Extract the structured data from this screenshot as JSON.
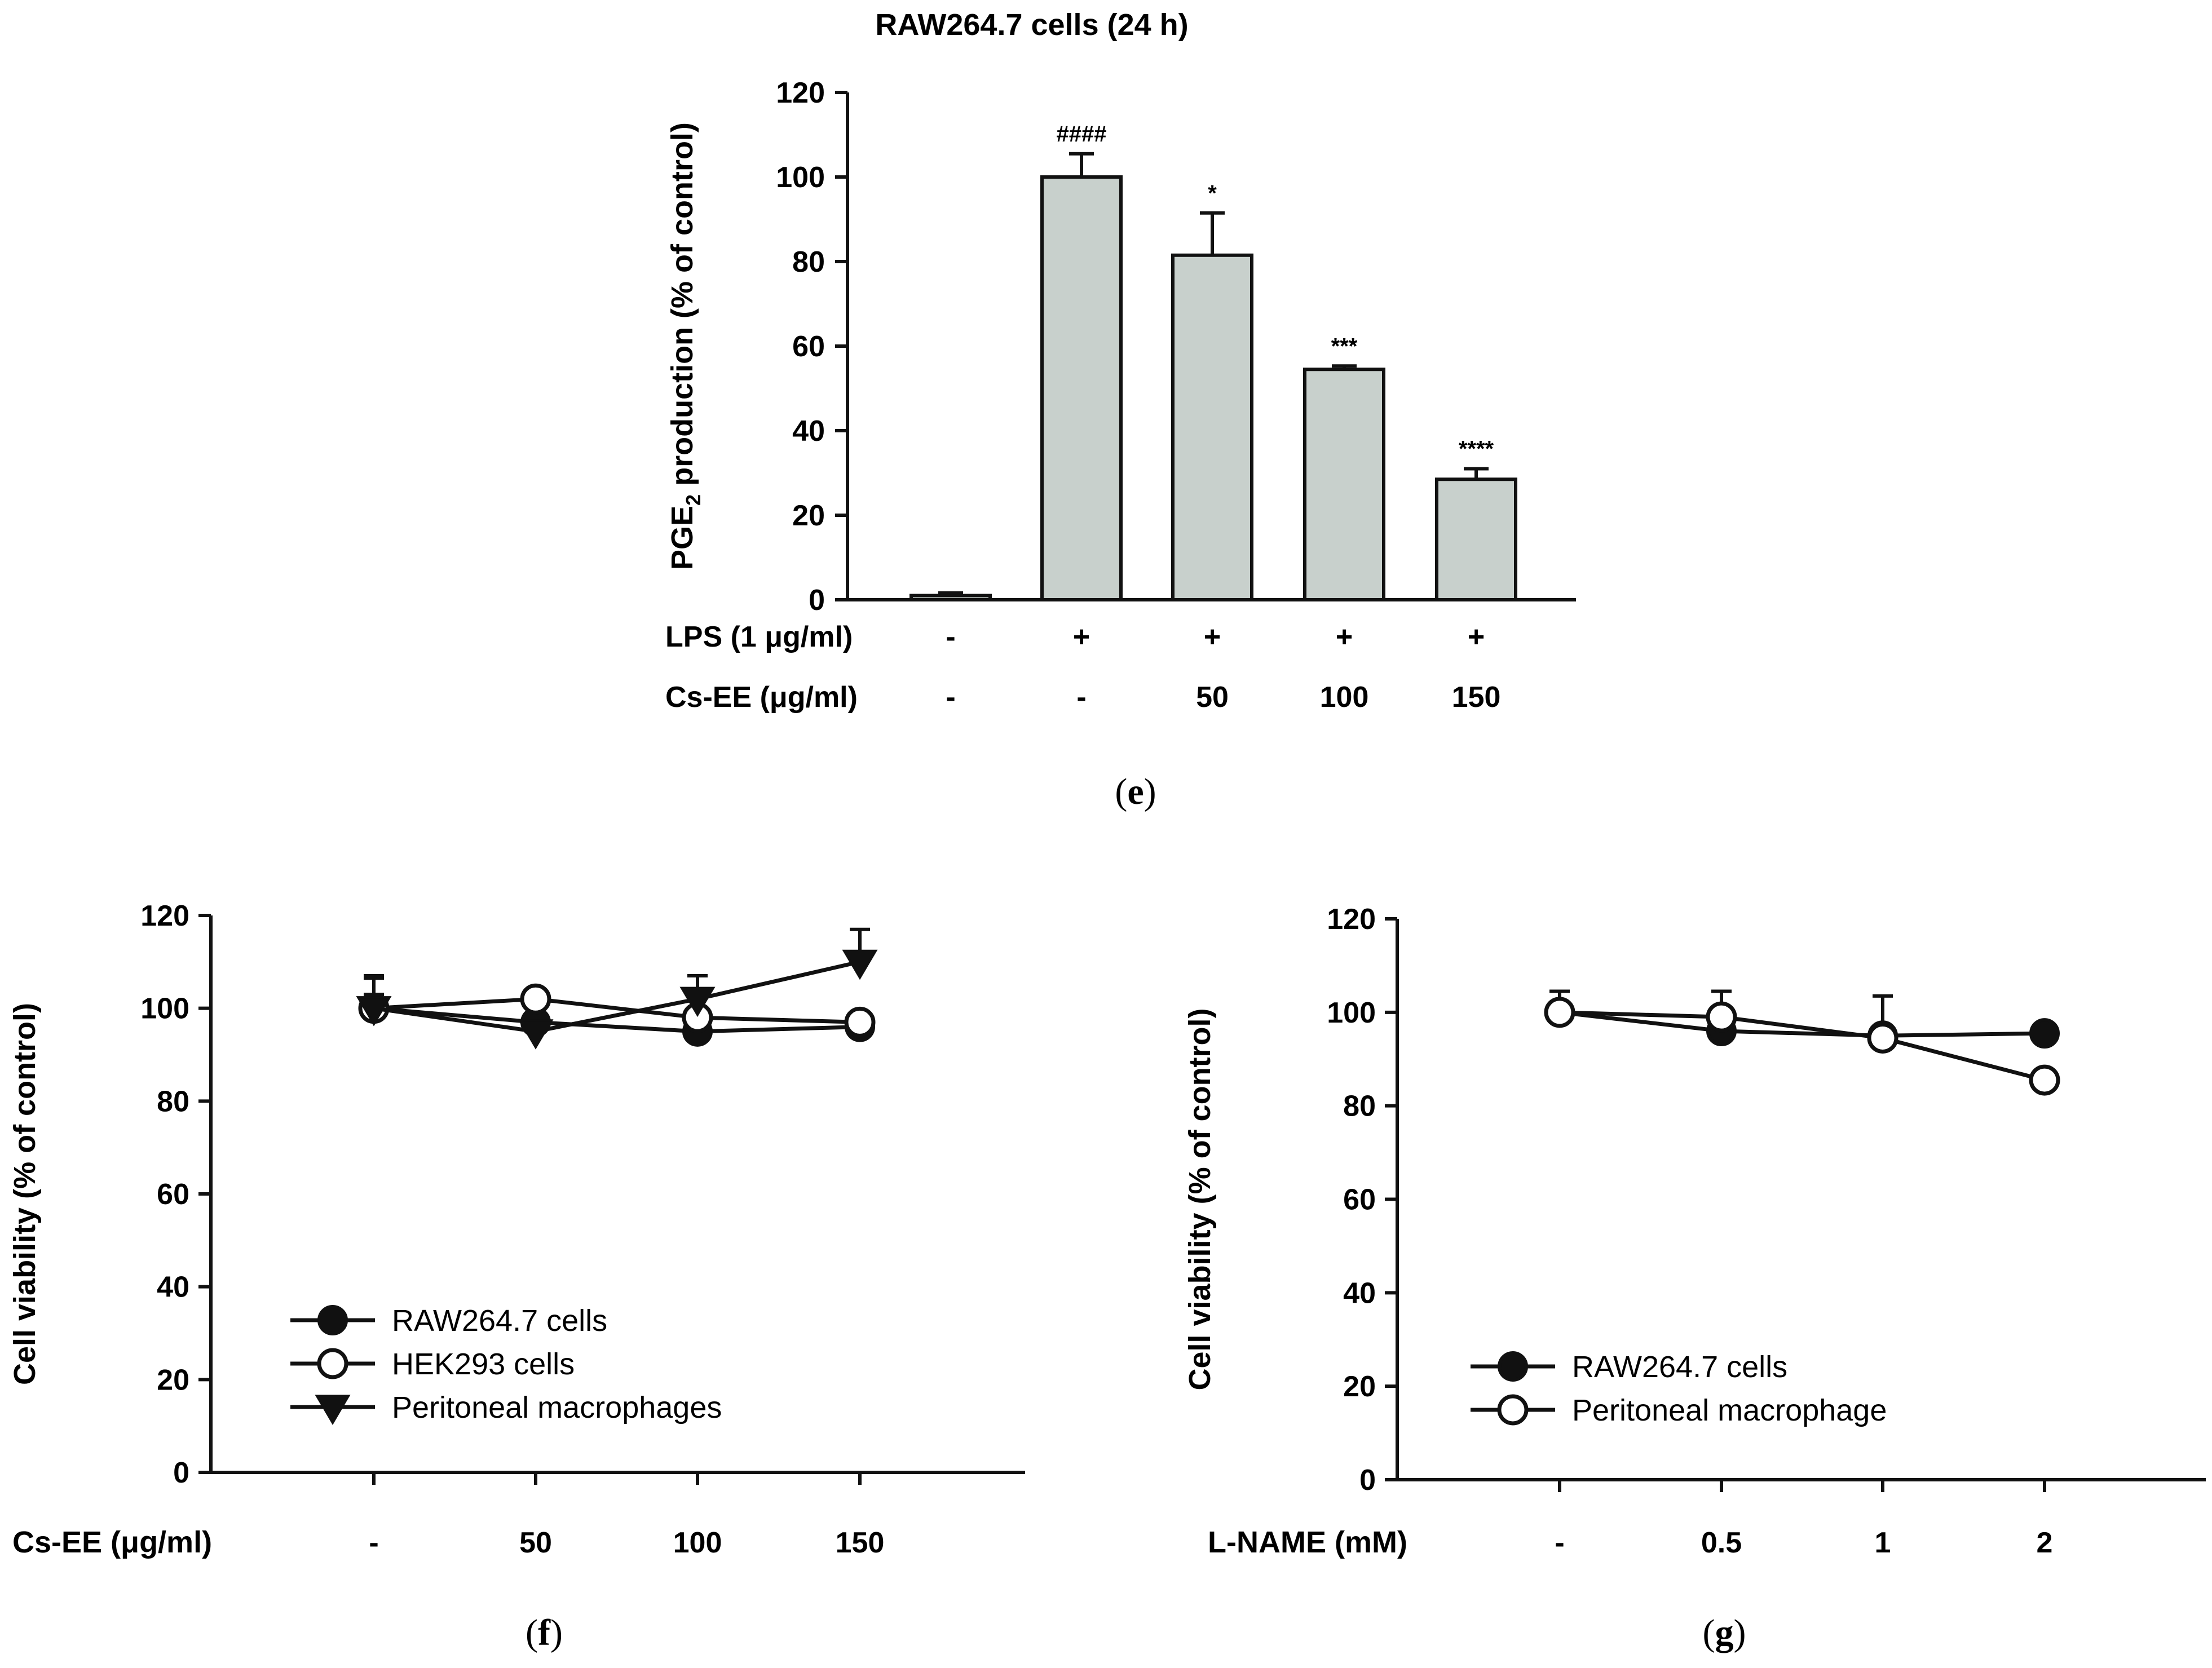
{
  "chart_data": [
    {
      "panel_label": "e",
      "type": "bar",
      "title": "RAW264.7 cells (24 h)",
      "ylabel_main": "PGE",
      "ylabel_sub": "2",
      "ylabel_rest": " production (% of control)",
      "ylim": [
        0,
        120
      ],
      "yticks": [
        0,
        20,
        40,
        60,
        80,
        100,
        120
      ],
      "treatment_rows": [
        {
          "label": "LPS (1 μg/ml)",
          "values": [
            "-",
            "+",
            "+",
            "+",
            "+"
          ]
        },
        {
          "label": "Cs-EE (μg/ml)",
          "values": [
            "-",
            "-",
            "50",
            "100",
            "150"
          ]
        }
      ],
      "values": [
        1,
        100,
        81.5,
        54.5,
        28.5
      ],
      "errors": [
        0.6,
        5.5,
        10,
        0.8,
        2.5
      ],
      "annotations": [
        "",
        "####",
        "*",
        "***",
        "****"
      ],
      "bar_color": "#c8d0cc"
    },
    {
      "panel_label": "f",
      "type": "line",
      "ylabel": "Cell viability (% of control)",
      "xlabel": "Cs-EE (μg/ml)",
      "categories": [
        "-",
        "50",
        "100",
        "150"
      ],
      "ylim": [
        0,
        120
      ],
      "yticks": [
        0,
        20,
        40,
        60,
        80,
        100,
        120
      ],
      "legend_position": "lower-left",
      "series": [
        {
          "name": "RAW264.7 cells",
          "marker": "filled-circle",
          "values": [
            100,
            97,
            95,
            96
          ],
          "errors": [
            3,
            2,
            1.5,
            1
          ]
        },
        {
          "name": "HEK293 cells",
          "marker": "open-circle",
          "values": [
            100,
            102,
            98,
            97
          ],
          "errors": [
            6.5,
            1,
            1,
            1
          ]
        },
        {
          "name": "Peritoneal macrophages",
          "marker": "filled-triangle-down",
          "values": [
            100,
            95,
            102,
            110
          ],
          "errors": [
            7,
            1,
            5,
            7
          ]
        }
      ]
    },
    {
      "panel_label": "g",
      "type": "line",
      "ylabel": "Cell viability (% of control)",
      "xlabel": "L-NAME (mM)",
      "categories": [
        "-",
        "0.5",
        "1",
        "2"
      ],
      "ylim": [
        0,
        120
      ],
      "yticks": [
        0,
        20,
        40,
        60,
        80,
        100,
        120
      ],
      "legend_position": "lower-left",
      "series": [
        {
          "name": "RAW264.7 cells",
          "marker": "filled-circle",
          "values": [
            100,
            96,
            95,
            95.5
          ],
          "errors": [
            2,
            3,
            2,
            1
          ]
        },
        {
          "name": "Peritoneal macrophage",
          "marker": "open-circle",
          "values": [
            100,
            99,
            94.5,
            85.5
          ],
          "errors": [
            4.5,
            5.5,
            9,
            1
          ]
        }
      ]
    }
  ]
}
